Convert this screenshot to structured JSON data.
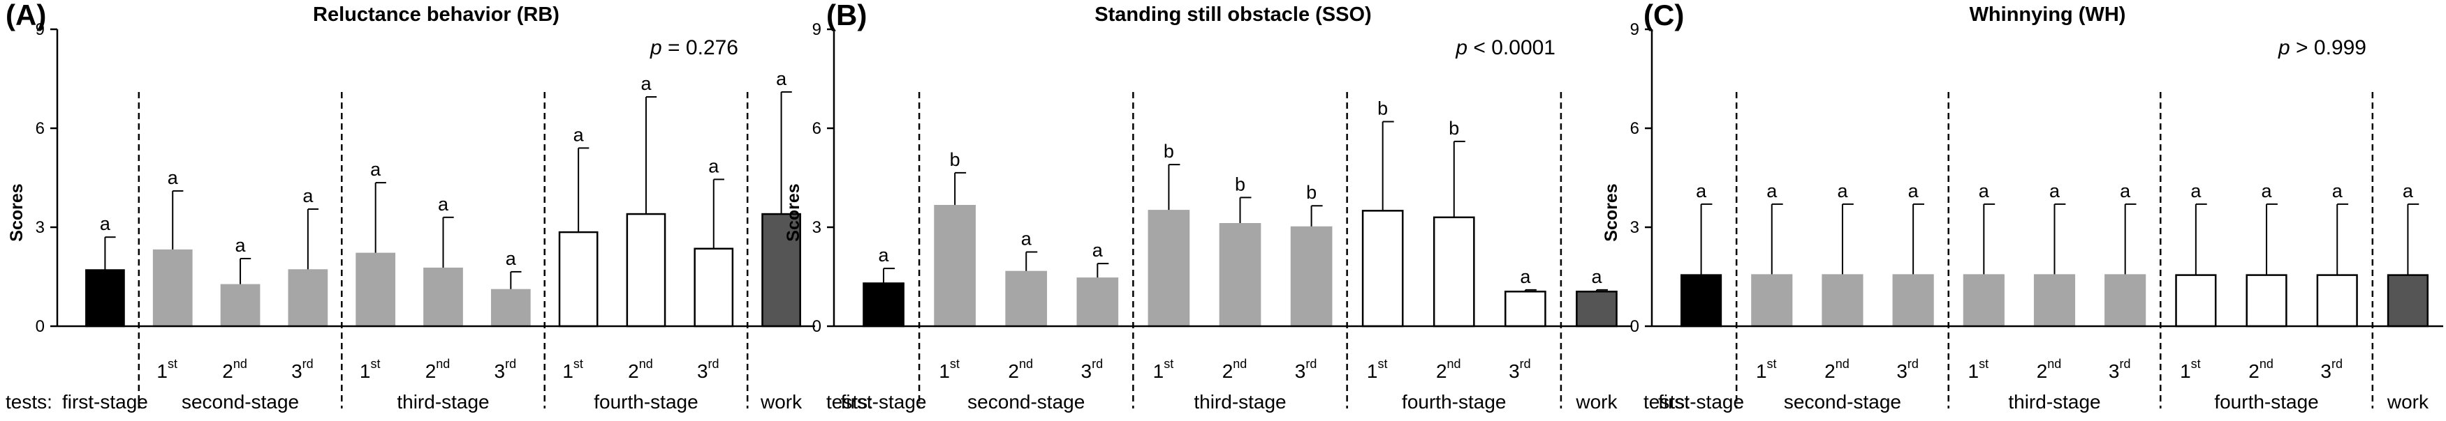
{
  "figure": {
    "x_prefix": "tests:"
  },
  "chart_data": [
    {
      "type": "bar",
      "panel": "(A)",
      "title": "Reluctance behavior (RB)",
      "stat": {
        "symbol": "p",
        "op": "=",
        "value": "0.276"
      },
      "ylabel": "Scores",
      "ylim": [
        0,
        9
      ],
      "yticks": [
        0,
        3,
        6,
        9
      ],
      "bars": [
        {
          "group": "first-stage",
          "value": 1.7,
          "error": 1.0,
          "letter": "a",
          "fill": "#000000"
        },
        {
          "group": "second-stage",
          "label": "1",
          "sup": "st",
          "value": 2.3,
          "error": 1.8,
          "letter": "a",
          "fill": "#a6a6a6"
        },
        {
          "group": "second-stage",
          "label": "2",
          "sup": "nd",
          "value": 1.25,
          "error": 0.8,
          "letter": "a",
          "fill": "#a6a6a6"
        },
        {
          "group": "second-stage",
          "label": "3",
          "sup": "rd",
          "value": 1.7,
          "error": 1.85,
          "letter": "a",
          "fill": "#a6a6a6"
        },
        {
          "group": "third-stage",
          "label": "1",
          "sup": "st",
          "value": 2.2,
          "error": 2.15,
          "letter": "a",
          "fill": "#a6a6a6"
        },
        {
          "group": "third-stage",
          "label": "2",
          "sup": "nd",
          "value": 1.75,
          "error": 1.55,
          "letter": "a",
          "fill": "#a6a6a6"
        },
        {
          "group": "third-stage",
          "label": "3",
          "sup": "rd",
          "value": 1.1,
          "error": 0.55,
          "letter": "a",
          "fill": "#a6a6a6"
        },
        {
          "group": "fourth-stage",
          "label": "1",
          "sup": "st",
          "value": 2.85,
          "error": 2.55,
          "letter": "a",
          "fill": "#ffffff"
        },
        {
          "group": "fourth-stage",
          "label": "2",
          "sup": "nd",
          "value": 3.4,
          "error": 3.55,
          "letter": "a",
          "fill": "#ffffff"
        },
        {
          "group": "fourth-stage",
          "label": "3",
          "sup": "rd",
          "value": 2.35,
          "error": 2.1,
          "letter": "a",
          "fill": "#ffffff"
        },
        {
          "group": "work",
          "value": 3.4,
          "error": 3.7,
          "letter": "a",
          "fill": "#555555"
        }
      ],
      "groups": [
        "first-stage",
        "second-stage",
        "third-stage",
        "fourth-stage",
        "work"
      ]
    },
    {
      "type": "bar",
      "panel": "(B)",
      "title": "Standing still obstacle (SSO)",
      "stat": {
        "symbol": "p",
        "op": "<",
        "value": "0.0001"
      },
      "ylabel": "Scores",
      "ylim": [
        0,
        9
      ],
      "yticks": [
        0,
        3,
        6,
        9
      ],
      "bars": [
        {
          "group": "first-stage",
          "value": 1.3,
          "error": 0.45,
          "letter": "a",
          "fill": "#000000"
        },
        {
          "group": "second-stage",
          "label": "1",
          "sup": "st",
          "value": 3.65,
          "error": 1.0,
          "letter": "b",
          "fill": "#a6a6a6"
        },
        {
          "group": "second-stage",
          "label": "2",
          "sup": "nd",
          "value": 1.65,
          "error": 0.6,
          "letter": "a",
          "fill": "#a6a6a6"
        },
        {
          "group": "second-stage",
          "label": "3",
          "sup": "rd",
          "value": 1.45,
          "error": 0.45,
          "letter": "a",
          "fill": "#a6a6a6"
        },
        {
          "group": "third-stage",
          "label": "1",
          "sup": "st",
          "value": 3.5,
          "error": 1.4,
          "letter": "b",
          "fill": "#a6a6a6"
        },
        {
          "group": "third-stage",
          "label": "2",
          "sup": "nd",
          "value": 3.1,
          "error": 0.8,
          "letter": "b",
          "fill": "#a6a6a6"
        },
        {
          "group": "third-stage",
          "label": "3",
          "sup": "rd",
          "value": 3.0,
          "error": 0.65,
          "letter": "b",
          "fill": "#a6a6a6"
        },
        {
          "group": "fourth-stage",
          "label": "1",
          "sup": "st",
          "value": 3.5,
          "error": 2.7,
          "letter": "b",
          "fill": "#ffffff"
        },
        {
          "group": "fourth-stage",
          "label": "2",
          "sup": "nd",
          "value": 3.3,
          "error": 2.3,
          "letter": "b",
          "fill": "#ffffff"
        },
        {
          "group": "fourth-stage",
          "label": "3",
          "sup": "rd",
          "value": 1.05,
          "error": 0.05,
          "letter": "a",
          "fill": "#ffffff"
        },
        {
          "group": "work",
          "value": 1.05,
          "error": 0.05,
          "letter": "a",
          "fill": "#555555"
        }
      ],
      "groups": [
        "first-stage",
        "second-stage",
        "third-stage",
        "fourth-stage",
        "work"
      ]
    },
    {
      "type": "bar",
      "panel": "(C)",
      "title": "Whinnying (WH)",
      "stat": {
        "symbol": "p",
        "op": ">",
        "value": "0.999"
      },
      "ylabel": "Scores",
      "ylim": [
        0,
        9
      ],
      "yticks": [
        0,
        3,
        6,
        9
      ],
      "bars": [
        {
          "group": "first-stage",
          "value": 1.55,
          "error": 2.15,
          "letter": "a",
          "fill": "#000000"
        },
        {
          "group": "second-stage",
          "label": "1",
          "sup": "st",
          "value": 1.55,
          "error": 2.15,
          "letter": "a",
          "fill": "#a6a6a6"
        },
        {
          "group": "second-stage",
          "label": "2",
          "sup": "nd",
          "value": 1.55,
          "error": 2.15,
          "letter": "a",
          "fill": "#a6a6a6"
        },
        {
          "group": "second-stage",
          "label": "3",
          "sup": "rd",
          "value": 1.55,
          "error": 2.15,
          "letter": "a",
          "fill": "#a6a6a6"
        },
        {
          "group": "third-stage",
          "label": "1",
          "sup": "st",
          "value": 1.55,
          "error": 2.15,
          "letter": "a",
          "fill": "#a6a6a6"
        },
        {
          "group": "third-stage",
          "label": "2",
          "sup": "nd",
          "value": 1.55,
          "error": 2.15,
          "letter": "a",
          "fill": "#a6a6a6"
        },
        {
          "group": "third-stage",
          "label": "3",
          "sup": "rd",
          "value": 1.55,
          "error": 2.15,
          "letter": "a",
          "fill": "#a6a6a6"
        },
        {
          "group": "fourth-stage",
          "label": "1",
          "sup": "st",
          "value": 1.55,
          "error": 2.15,
          "letter": "a",
          "fill": "#ffffff"
        },
        {
          "group": "fourth-stage",
          "label": "2",
          "sup": "nd",
          "value": 1.55,
          "error": 2.15,
          "letter": "a",
          "fill": "#ffffff"
        },
        {
          "group": "fourth-stage",
          "label": "3",
          "sup": "rd",
          "value": 1.55,
          "error": 2.15,
          "letter": "a",
          "fill": "#ffffff"
        },
        {
          "group": "work",
          "value": 1.55,
          "error": 2.15,
          "letter": "a",
          "fill": "#555555"
        }
      ],
      "groups": [
        "first-stage",
        "second-stage",
        "third-stage",
        "fourth-stage",
        "work"
      ]
    }
  ]
}
